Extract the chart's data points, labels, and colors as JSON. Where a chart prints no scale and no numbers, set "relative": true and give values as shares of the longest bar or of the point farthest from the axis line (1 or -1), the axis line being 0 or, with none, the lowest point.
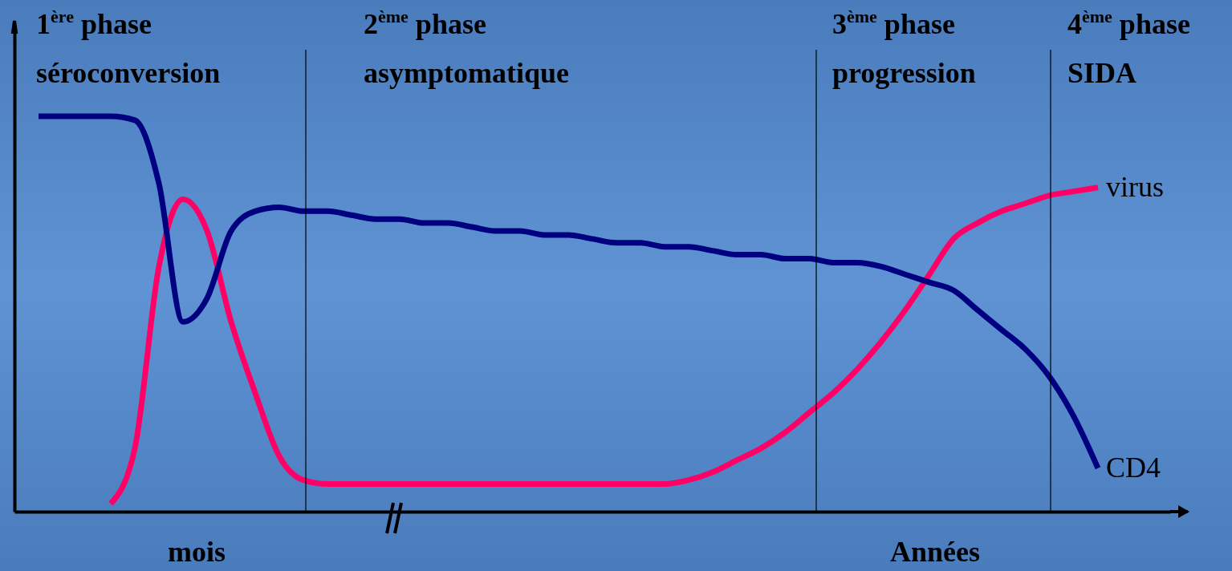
{
  "chart_data": {
    "type": "line",
    "relative": true,
    "legend": false,
    "categories": [
      null,
      null,
      null,
      null,
      null,
      null,
      null,
      null,
      null,
      null,
      null,
      null,
      null,
      null,
      null,
      null,
      null,
      null,
      null,
      null,
      null,
      null,
      null,
      null,
      null,
      null,
      null,
      null,
      null,
      null,
      null,
      null,
      null,
      null,
      null,
      null,
      null,
      null,
      null,
      null,
      null,
      null,
      null,
      null,
      null,
      null,
      null,
      null,
      null
    ],
    "series": [
      {
        "name": "virus",
        "color": "#ff0066",
        "values": [
          null,
          null,
          null,
          null,
          0.02,
          0.16,
          0.62,
          0.79,
          0.71,
          0.48,
          0.3,
          0.14,
          0.08,
          0.07,
          0.07,
          0.07,
          0.07,
          0.07,
          0.07,
          0.07,
          0.07,
          0.07,
          0.07,
          0.07,
          0.07,
          0.07,
          0.07,
          0.07,
          0.08,
          0.1,
          0.13,
          0.16,
          0.2,
          0.25,
          0.3,
          0.36,
          0.43,
          0.51,
          0.6,
          0.69,
          0.73,
          0.76,
          0.78,
          0.8,
          0.81,
          0.82,
          null,
          null,
          null
        ]
      },
      {
        "name": "CD4",
        "color": "#000080",
        "values": [
          null,
          1.0,
          1.0,
          1.0,
          1.0,
          0.99,
          0.83,
          0.48,
          0.54,
          0.71,
          0.76,
          0.77,
          0.76,
          0.76,
          0.75,
          0.74,
          0.74,
          0.73,
          0.73,
          0.72,
          0.71,
          0.71,
          0.7,
          0.7,
          0.69,
          0.68,
          0.68,
          0.67,
          0.67,
          0.66,
          0.65,
          0.65,
          0.64,
          0.64,
          0.63,
          0.63,
          0.62,
          0.6,
          0.58,
          0.56,
          0.51,
          0.46,
          0.41,
          0.34,
          0.24,
          0.11,
          null,
          null,
          null
        ]
      }
    ],
    "annotations": [
      "1$^{ère}$ phase\nséroconversion",
      "2$^{ème}$ phase\nasymptomatique",
      "3$^{ème}$ phase\nprogression",
      "4$^{ème}$ phase\nSIDA",
      "mois",
      "Années"
    ]
  }
}
